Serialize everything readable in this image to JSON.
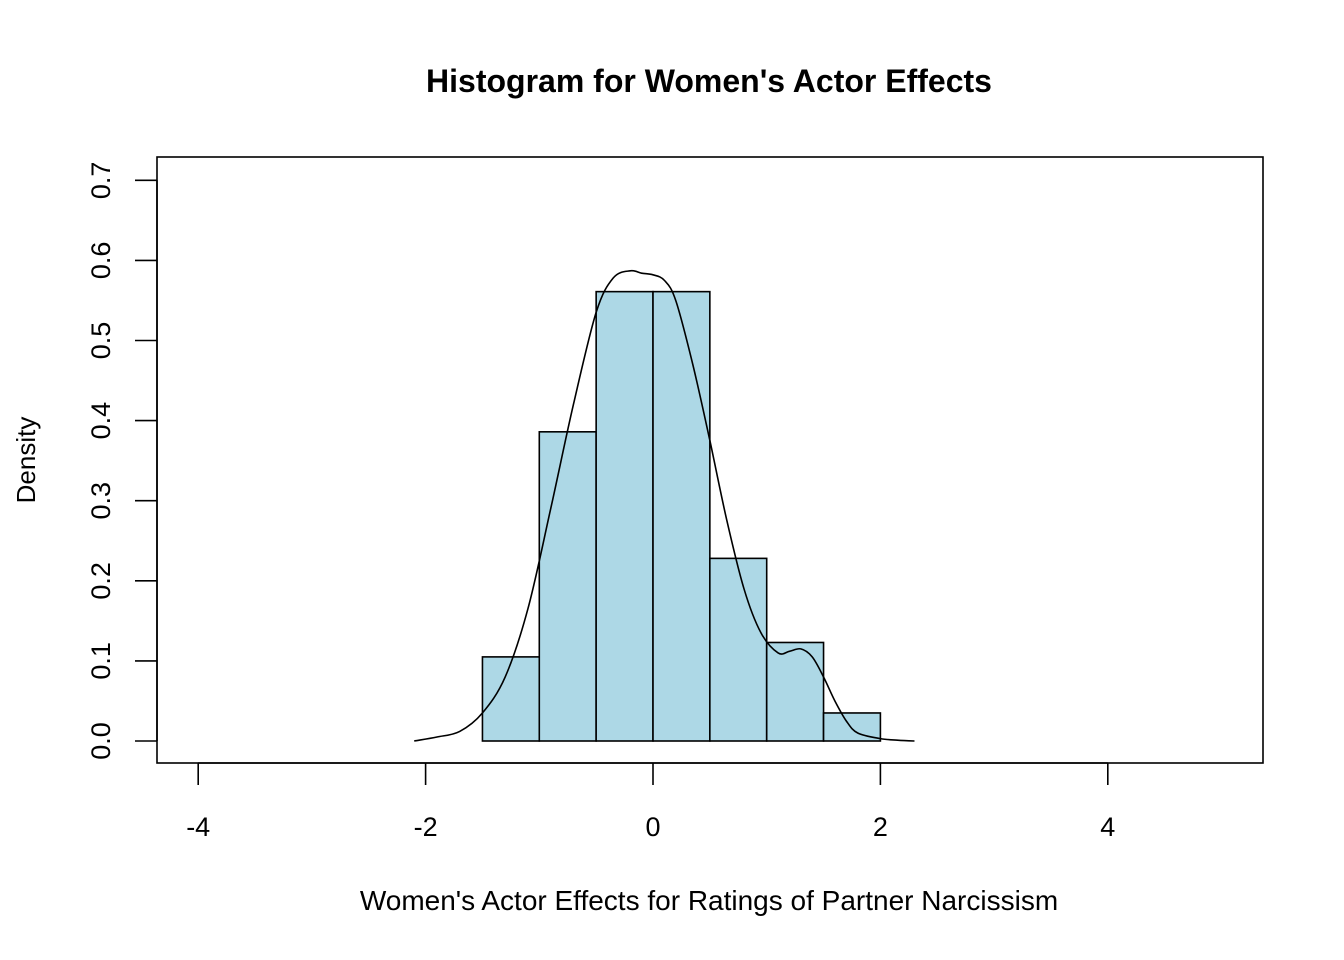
{
  "chart_data": {
    "type": "bar",
    "subtype": "histogram-with-density",
    "title": "Histogram for Women's Actor Effects",
    "xlabel": "Women's Actor Effects for Ratings of Partner Narcissism",
    "ylabel": "Density",
    "xlim": [
      -4.4,
      5.3
    ],
    "ylim": [
      0,
      0.73
    ],
    "x_ticks": [
      -4,
      -2,
      0,
      2,
      4
    ],
    "y_ticks": [
      0.0,
      0.1,
      0.2,
      0.3,
      0.4,
      0.5,
      0.6,
      0.7
    ],
    "x_tick_labels": [
      "-4",
      "-2",
      "0",
      "2",
      "4"
    ],
    "y_tick_labels": [
      "0.0",
      "0.1",
      "0.2",
      "0.3",
      "0.4",
      "0.5",
      "0.6",
      "0.7"
    ],
    "bins": [
      {
        "start": -1.5,
        "end": -1.0,
        "density": 0.105
      },
      {
        "start": -1.0,
        "end": -0.5,
        "density": 0.386
      },
      {
        "start": -0.5,
        "end": 0.0,
        "density": 0.561
      },
      {
        "start": 0.0,
        "end": 0.5,
        "density": 0.561
      },
      {
        "start": 0.5,
        "end": 1.0,
        "density": 0.228
      },
      {
        "start": 1.0,
        "end": 1.5,
        "density": 0.123
      },
      {
        "start": 1.5,
        "end": 2.0,
        "density": 0.035
      }
    ],
    "density_curve": {
      "x": [
        -2.1,
        -1.9,
        -1.7,
        -1.5,
        -1.3,
        -1.1,
        -0.9,
        -0.7,
        -0.5,
        -0.35,
        -0.2,
        -0.1,
        0.0,
        0.1,
        0.2,
        0.35,
        0.5,
        0.65,
        0.8,
        0.95,
        1.1,
        1.2,
        1.3,
        1.4,
        1.5,
        1.6,
        1.7,
        1.8,
        2.0,
        2.15,
        2.3
      ],
      "y": [
        0.0,
        0.005,
        0.012,
        0.035,
        0.08,
        0.165,
        0.29,
        0.42,
        0.535,
        0.578,
        0.587,
        0.584,
        0.582,
        0.575,
        0.55,
        0.47,
        0.375,
        0.275,
        0.19,
        0.135,
        0.11,
        0.112,
        0.115,
        0.105,
        0.08,
        0.05,
        0.025,
        0.01,
        0.003,
        0.001,
        0.0
      ]
    },
    "grid": false,
    "legend": "none",
    "colors": {
      "bar_fill": "#add8e6",
      "bar_stroke": "#000000",
      "curve": "#000000",
      "box": "#000000",
      "background": "#ffffff"
    }
  }
}
